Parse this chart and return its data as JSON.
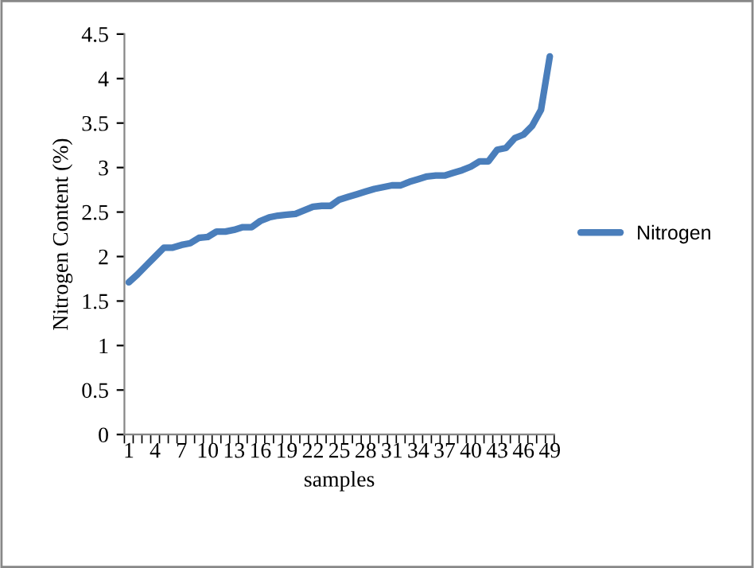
{
  "chart_data": {
    "type": "line",
    "xlabel": "samples",
    "ylabel": "Nitrogen Content (%)",
    "categories": [
      "1",
      null,
      null,
      "4",
      null,
      null,
      "7",
      null,
      null,
      "10",
      null,
      null,
      "13",
      null,
      null,
      "16",
      null,
      null,
      "19",
      null,
      null,
      "22",
      null,
      null,
      "25",
      null,
      null,
      "28",
      null,
      null,
      "31",
      null,
      null,
      "34",
      null,
      null,
      "37",
      null,
      null,
      "40",
      null,
      null,
      "43",
      null,
      null,
      "46",
      null,
      null,
      "49"
    ],
    "series": [
      {
        "name": "Nitrogen",
        "color": "#4a7ebb",
        "values": [
          1.71,
          1.8,
          1.9,
          2.0,
          2.1,
          2.1,
          2.13,
          2.15,
          2.21,
          2.22,
          2.28,
          2.28,
          2.3,
          2.33,
          2.33,
          2.4,
          2.44,
          2.46,
          2.47,
          2.48,
          2.52,
          2.56,
          2.57,
          2.57,
          2.64,
          2.67,
          2.7,
          2.73,
          2.76,
          2.78,
          2.8,
          2.8,
          2.84,
          2.87,
          2.9,
          2.91,
          2.91,
          2.94,
          2.97,
          3.01,
          3.07,
          3.07,
          3.2,
          3.22,
          3.33,
          3.37,
          3.47,
          3.65,
          4.25
        ]
      }
    ],
    "ylim": [
      0,
      4.5
    ],
    "yticks": [
      0,
      0.5,
      1,
      1.5,
      2,
      2.5,
      3,
      3.5,
      4,
      4.5
    ],
    "grid": false,
    "legend": "right",
    "marker": "none",
    "line_style": "solid"
  }
}
